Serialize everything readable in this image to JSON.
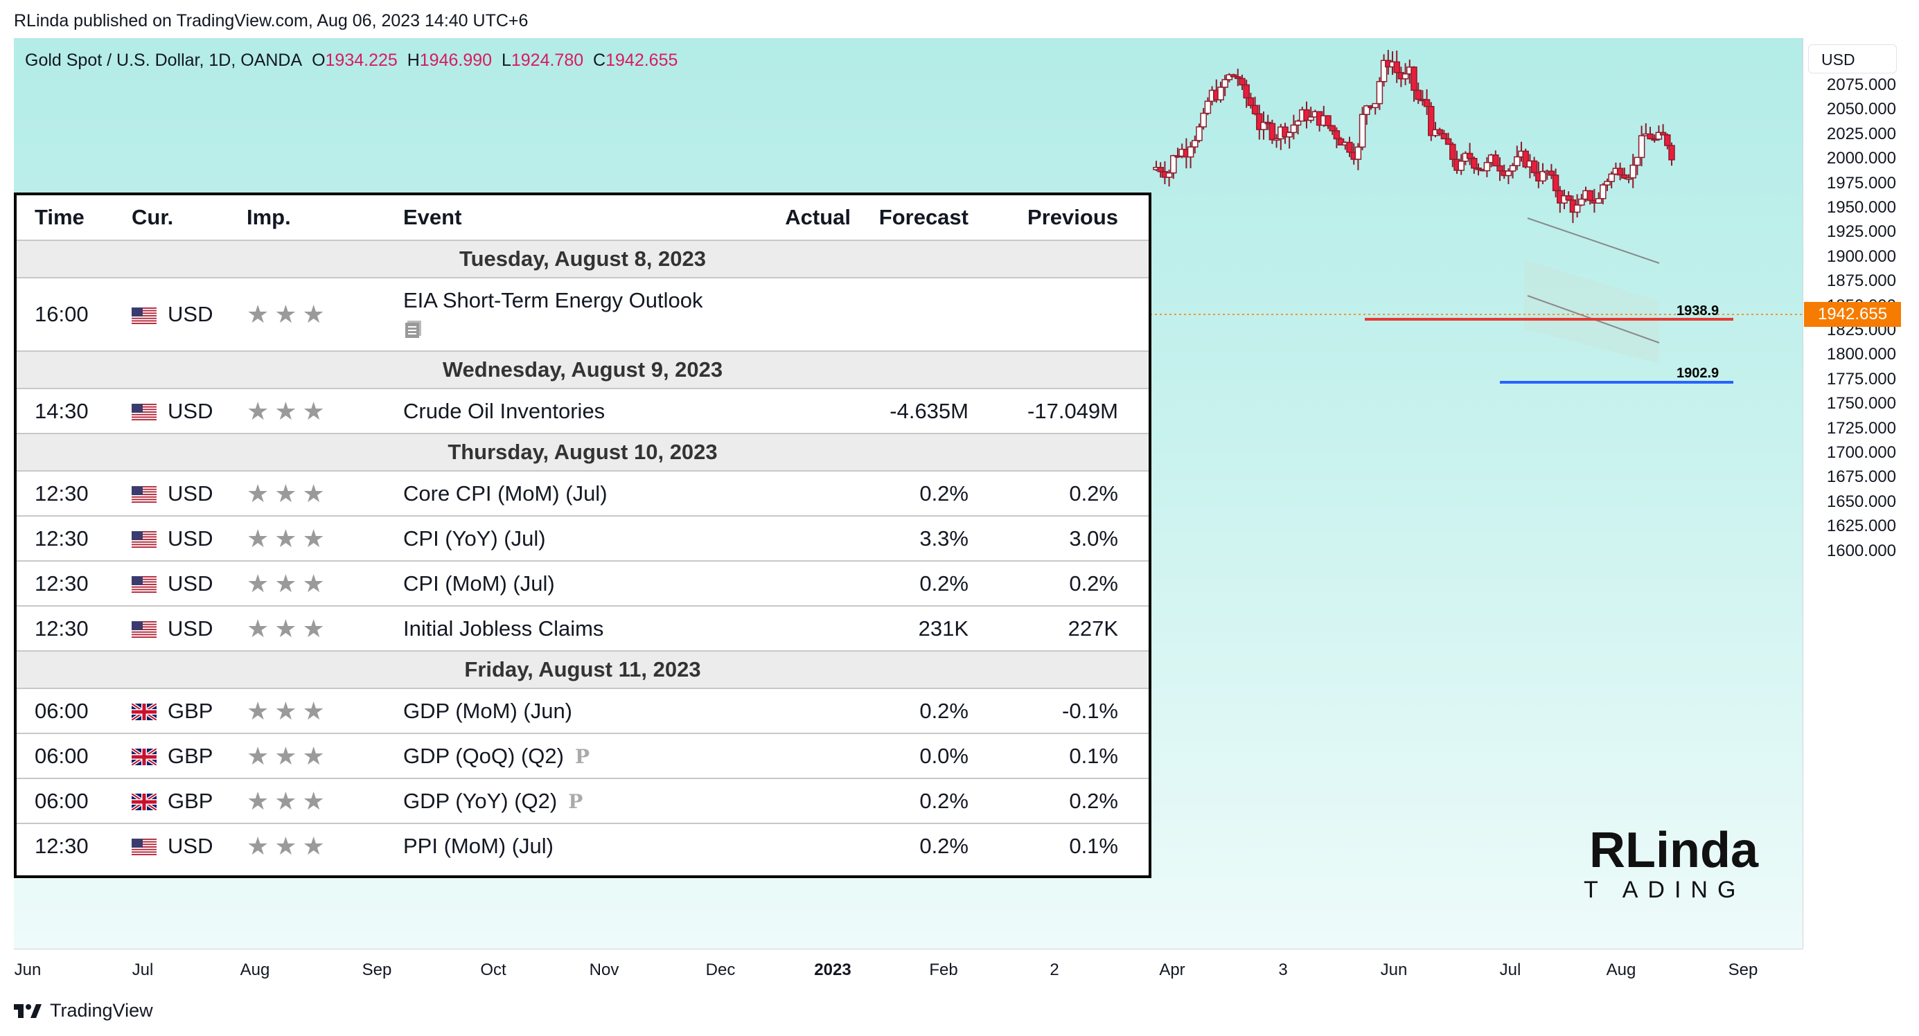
{
  "header": {
    "publish_line": "RLinda published on TradingView.com, Aug 06, 2023 14:40 UTC+6"
  },
  "symbol": {
    "name": "Gold Spot / U.S. Dollar, 1D, OANDA",
    "o_label": "O",
    "o": "1934.225",
    "h_label": "H",
    "h": "1946.990",
    "l_label": "L",
    "l": "1924.780",
    "c_label": "C",
    "c": "1942.655"
  },
  "currency_button": "USD",
  "price_axis": {
    "labels": [
      "2075.000",
      "2050.000",
      "2025.000",
      "2000.000",
      "1975.000",
      "1950.000",
      "1925.000",
      "1900.000",
      "1875.000",
      "1850.000",
      "1825.000",
      "1800.000",
      "1775.000",
      "1750.000",
      "1725.000",
      "1700.000",
      "1675.000",
      "1650.000",
      "1625.000",
      "1600.000"
    ],
    "last_price": "1942.655"
  },
  "levels": {
    "resistance": "1938.9",
    "support": "1902.9"
  },
  "time_axis": {
    "labels": [
      "Jun",
      "Jul",
      "Aug",
      "Sep",
      "Oct",
      "Nov",
      "Dec",
      "2023",
      "Feb",
      "2",
      "Apr",
      "3",
      "Jun",
      "Jul",
      "Aug",
      "Sep"
    ]
  },
  "calendar": {
    "headers": {
      "time": "Time",
      "cur": "Cur.",
      "imp": "Imp.",
      "event": "Event",
      "actual": "Actual",
      "forecast": "Forecast",
      "previous": "Previous"
    },
    "stars": "★★★",
    "groups": [
      {
        "date": "Tuesday, August 8, 2023",
        "rows": [
          {
            "time": "16:00",
            "cur": "USD",
            "event": "EIA Short-Term Energy Outlook",
            "actual": "",
            "forecast": "",
            "previous": "",
            "icon": "document-icon"
          }
        ]
      },
      {
        "date": "Wednesday, August 9, 2023",
        "rows": [
          {
            "time": "14:30",
            "cur": "USD",
            "event": "Crude Oil Inventories",
            "actual": "",
            "forecast": "-4.635M",
            "previous": "-17.049M"
          }
        ]
      },
      {
        "date": "Thursday, August 10, 2023",
        "rows": [
          {
            "time": "12:30",
            "cur": "USD",
            "event": "Core CPI (MoM) (Jul)",
            "actual": "",
            "forecast": "0.2%",
            "previous": "0.2%"
          },
          {
            "time": "12:30",
            "cur": "USD",
            "event": "CPI (YoY) (Jul)",
            "actual": "",
            "forecast": "3.3%",
            "previous": "3.0%"
          },
          {
            "time": "12:30",
            "cur": "USD",
            "event": "CPI (MoM) (Jul)",
            "actual": "",
            "forecast": "0.2%",
            "previous": "0.2%"
          },
          {
            "time": "12:30",
            "cur": "USD",
            "event": "Initial Jobless Claims",
            "actual": "",
            "forecast": "231K",
            "previous": "227K"
          }
        ]
      },
      {
        "date": "Friday, August 11, 2023",
        "rows": [
          {
            "time": "06:00",
            "cur": "GBP",
            "event": "GDP (MoM) (Jun)",
            "actual": "",
            "forecast": "0.2%",
            "previous": "-0.1%"
          },
          {
            "time": "06:00",
            "cur": "GBP",
            "event": "GDP (QoQ) (Q2)",
            "badge": "P",
            "actual": "",
            "forecast": "0.0%",
            "previous": "0.1%"
          },
          {
            "time": "06:00",
            "cur": "GBP",
            "event": "GDP (YoY) (Q2)",
            "badge": "P",
            "actual": "",
            "forecast": "0.2%",
            "previous": "0.2%"
          },
          {
            "time": "12:30",
            "cur": "USD",
            "event": "PPI (MoM) (Jul)",
            "actual": "",
            "forecast": "0.2%",
            "previous": "0.1%"
          }
        ]
      }
    ]
  },
  "logo": {
    "top": "RLinda",
    "bottom": "T ADING"
  },
  "footer": {
    "brand": "TradingView"
  },
  "colors": {
    "bull": "#ffffff",
    "bear": "#e91e3c",
    "resistance": "#e53935",
    "support": "#2962ff",
    "badge": "#f57c00"
  }
}
